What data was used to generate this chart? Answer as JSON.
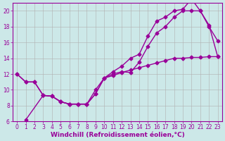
{
  "background_color": "#cce8e8",
  "grid_color": "#b0b0b0",
  "line_color": "#990099",
  "marker": "D",
  "markersize": 2.5,
  "linewidth": 1.0,
  "xlim": [
    -0.5,
    23.5
  ],
  "ylim": [
    6,
    21
  ],
  "yticks": [
    6,
    8,
    10,
    12,
    14,
    16,
    18,
    20
  ],
  "xticks": [
    0,
    1,
    2,
    3,
    4,
    5,
    6,
    7,
    8,
    9,
    10,
    11,
    12,
    13,
    14,
    15,
    16,
    17,
    18,
    19,
    20,
    21,
    22,
    23
  ],
  "xlabel": "Windchill (Refroidissement éolien,°C)",
  "xlabel_fontsize": 6.5,
  "tick_fontsize": 5.5,
  "line1_x": [
    0,
    1,
    2,
    3,
    4,
    5,
    6,
    7,
    8,
    9,
    10,
    11,
    12,
    13,
    14,
    15,
    16,
    17,
    18,
    19,
    20,
    21,
    22,
    23
  ],
  "line1_y": [
    12.0,
    11.0,
    11.0,
    9.3,
    9.2,
    8.5,
    8.2,
    8.2,
    8.2,
    9.5,
    11.5,
    12.0,
    12.3,
    12.2,
    13.5,
    15.5,
    17.2,
    18.0,
    19.2,
    20.0,
    20.0,
    20.0,
    18.0,
    16.2
  ],
  "line2_x": [
    1,
    3,
    4,
    5,
    6,
    7,
    8,
    9,
    10,
    11,
    12,
    13,
    14,
    15,
    16,
    17,
    18,
    19,
    20,
    21,
    22,
    23
  ],
  "line2_y": [
    6.2,
    9.3,
    9.2,
    8.5,
    8.2,
    8.2,
    8.2,
    9.5,
    11.5,
    12.3,
    13.0,
    14.0,
    14.5,
    16.8,
    18.7,
    19.2,
    20.0,
    20.2,
    21.5,
    20.0,
    18.2,
    14.2
  ],
  "line3_x": [
    0,
    1,
    2,
    3,
    4,
    5,
    6,
    7,
    8,
    9,
    10,
    11,
    12,
    13,
    14,
    15,
    16,
    17,
    18,
    19,
    20,
    21,
    22,
    23
  ],
  "line3_y": [
    12.0,
    11.0,
    11.0,
    9.3,
    9.2,
    8.5,
    8.2,
    8.2,
    8.2,
    10.0,
    11.5,
    11.8,
    12.2,
    12.5,
    12.8,
    13.1,
    13.4,
    13.7,
    14.0,
    14.0,
    14.1,
    14.1,
    14.2,
    14.2
  ]
}
